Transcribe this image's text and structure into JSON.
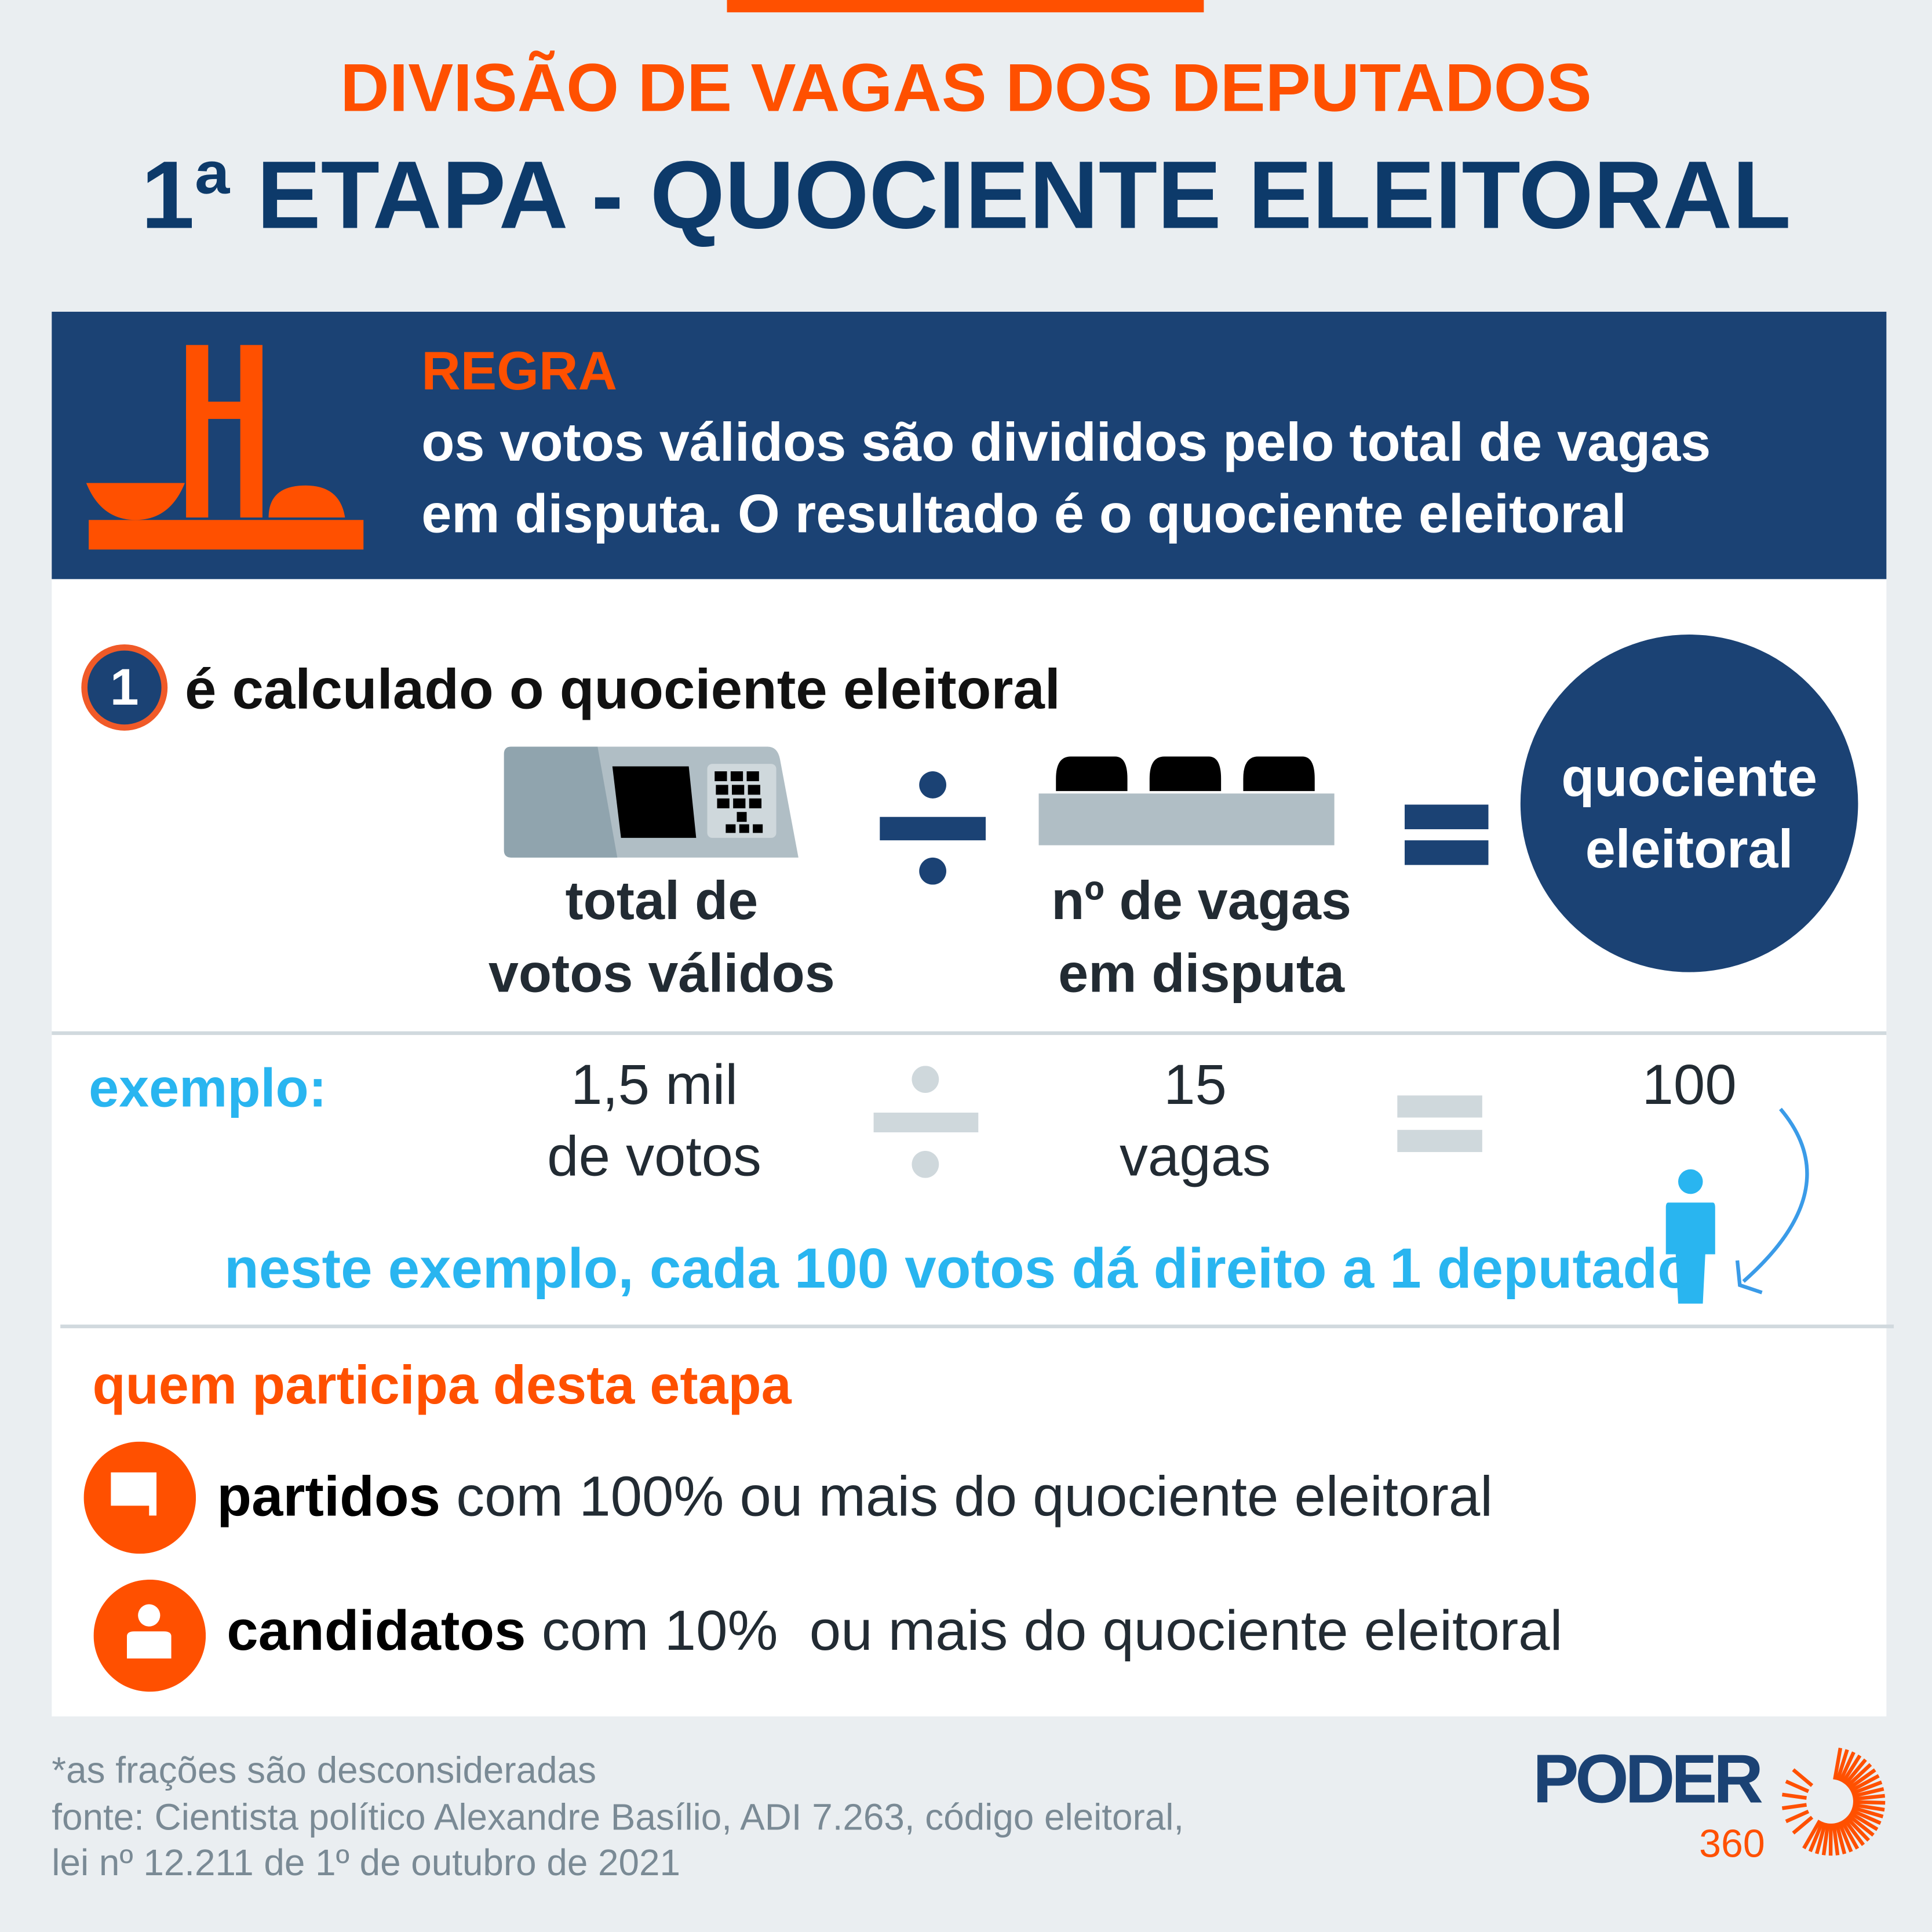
{
  "header": {
    "kicker": "DIVISÃO DE VAGAS DOS DEPUTADOS",
    "title": "1ª ETAPA - QUOCIENTE ELEITORAL"
  },
  "rule": {
    "label": "REGRA",
    "line1": "os votos válidos são divididos pelo total de vagas",
    "line2": "em disputa. O resultado é o quociente eleitoral",
    "icon": "congress-building-icon"
  },
  "step": {
    "number": "1",
    "title": "é calculado o quociente eleitoral",
    "operand1": {
      "line1": "total de",
      "line2": "votos válidos",
      "icon": "ballot-box-icon"
    },
    "operand2": {
      "line1": "nº de vagas",
      "line2": "em disputa",
      "icon": "seats-icon"
    },
    "result": {
      "line1": "quociente",
      "line2": "eleitoral"
    }
  },
  "example": {
    "label": "exemplo:",
    "operand1": {
      "line1": "1,5 mil",
      "line2": "de votos"
    },
    "operand2": {
      "line1": "15",
      "line2": "vagas"
    },
    "result": "100",
    "note": "neste exemplo, cada 100 votos dá direito a 1 deputado"
  },
  "participants": {
    "title": "quem participa desta etapa",
    "items": [
      {
        "bold": "partidos",
        "rest": " com 100% ou mais do quociente eleitoral",
        "icon": "speech-bubble-icon"
      },
      {
        "bold": "candidatos",
        "rest": " com 10%  ou mais do quociente eleitoral",
        "icon": "person-icon"
      }
    ]
  },
  "footer": {
    "note": "*as frações são desconsideradas",
    "source1": "fonte: Cientista político Alexandre Basílio, ADI 7.263, código eleitoral,",
    "source2": "lei nº 12.211 de 1º de outubro de 2021",
    "logo_word": "PODER",
    "logo_number": "360"
  },
  "colors": {
    "orange": "#ff5000",
    "navy": "#1b4274",
    "cyan": "#29b5f0",
    "background": "#eaeef1"
  }
}
